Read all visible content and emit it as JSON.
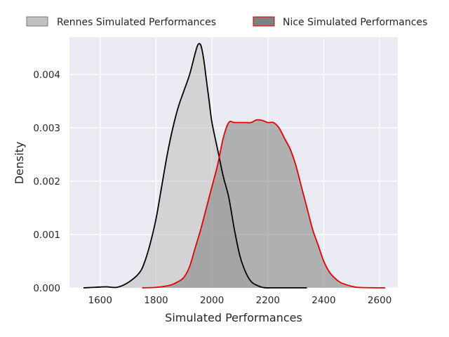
{
  "chart_data": {
    "type": "area",
    "title": "",
    "xlabel": "Simulated Performances",
    "ylabel": "Density",
    "xlim": [
      1490,
      2665
    ],
    "ylim": [
      0,
      0.0047
    ],
    "xticks": [
      1600,
      1800,
      2000,
      2200,
      2400,
      2600
    ],
    "xtick_labels": [
      "1600",
      "1800",
      "2000",
      "2200",
      "2400",
      "2600"
    ],
    "yticks": [
      0,
      0.001,
      0.002,
      0.003,
      0.004
    ],
    "ytick_labels": [
      "0.000",
      "0.001",
      "0.002",
      "0.003",
      "0.004"
    ],
    "grid": true,
    "legend_position": "top",
    "background": "#eaeaf2",
    "series": [
      {
        "name": "Rennes Simulated Performances",
        "fill": "#c0c0c0",
        "line": "#000000",
        "x": [
          1540,
          1580,
          1620,
          1660,
          1700,
          1740,
          1760,
          1780,
          1800,
          1820,
          1840,
          1860,
          1880,
          1900,
          1920,
          1940,
          1950,
          1960,
          1970,
          1980,
          1990,
          2000,
          2020,
          2040,
          2060,
          2080,
          2100,
          2120,
          2140,
          2160,
          2180,
          2200,
          2220,
          2260,
          2300,
          2340
        ],
        "y": [
          0,
          1e-05,
          2e-05,
          1e-05,
          0.0001,
          0.00028,
          0.0005,
          0.00085,
          0.0013,
          0.0019,
          0.0025,
          0.003,
          0.0034,
          0.0037,
          0.004,
          0.0044,
          0.00456,
          0.00455,
          0.0043,
          0.0039,
          0.0035,
          0.0031,
          0.0026,
          0.0021,
          0.0017,
          0.0011,
          0.0006,
          0.0003,
          0.00012,
          5e-05,
          1e-05,
          0,
          0,
          0,
          0,
          0
        ]
      },
      {
        "name": "Nice Simulated Performances",
        "fill": "#808080",
        "line": "#e60000",
        "x": [
          1750,
          1800,
          1850,
          1880,
          1900,
          1920,
          1940,
          1960,
          1980,
          2000,
          2020,
          2040,
          2060,
          2080,
          2100,
          2120,
          2140,
          2160,
          2180,
          2200,
          2220,
          2240,
          2260,
          2280,
          2300,
          2320,
          2340,
          2360,
          2380,
          2400,
          2420,
          2440,
          2460,
          2480,
          2500,
          2520,
          2560,
          2620
        ],
        "y": [
          0,
          1e-05,
          5e-05,
          0.00012,
          0.0002,
          0.0004,
          0.00075,
          0.0011,
          0.0015,
          0.0019,
          0.0023,
          0.0028,
          0.0031,
          0.0031,
          0.0031,
          0.0031,
          0.0031,
          0.00315,
          0.00314,
          0.0031,
          0.0031,
          0.003,
          0.0028,
          0.0026,
          0.0023,
          0.0019,
          0.0015,
          0.0011,
          0.0008,
          0.0005,
          0.0003,
          0.00018,
          0.0001,
          6e-05,
          3e-05,
          1e-05,
          3e-06,
          0
        ]
      }
    ]
  }
}
